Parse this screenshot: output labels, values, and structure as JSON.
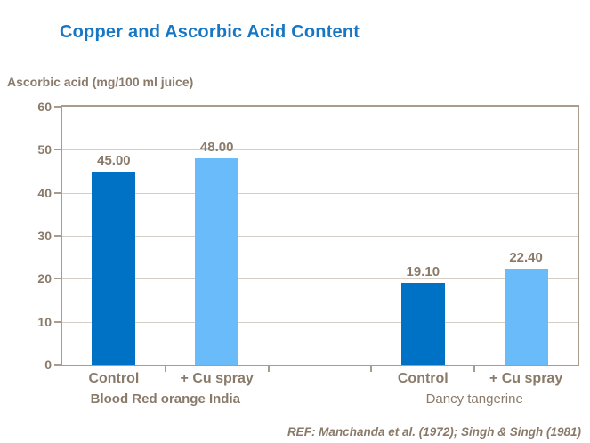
{
  "chart_data": {
    "type": "bar",
    "title": "Copper and Ascorbic Acid Content",
    "ylabel": "Ascorbic acid (mg/100 ml juice)",
    "ylim": [
      0,
      60
    ],
    "yticks": [
      0,
      10,
      20,
      30,
      40,
      50,
      60
    ],
    "grid": true,
    "legend_position": "none",
    "category_slots": 5,
    "bars": [
      {
        "category": "Control",
        "group": "Blood Red orange India",
        "value": 45.0,
        "display": "45.00",
        "series": "control",
        "slot": 0
      },
      {
        "category": "+ Cu spray",
        "group": "Blood Red orange India",
        "value": 48.0,
        "display": "48.00",
        "series": "cu_spray",
        "slot": 1
      },
      {
        "category": "Control",
        "group": "Dancy tangerine",
        "value": 19.1,
        "display": "19.10",
        "series": "control",
        "slot": 3
      },
      {
        "category": "+ Cu spray",
        "group": "Dancy tangerine",
        "value": 22.4,
        "display": "22.40",
        "series": "cu_spray",
        "slot": 4
      }
    ],
    "groups": [
      {
        "label": "Blood Red orange India",
        "bold": true,
        "slot_start": 0,
        "slot_end": 2
      },
      {
        "label": "Dancy tangerine",
        "bold": false,
        "slot_start": 3,
        "slot_end": 5
      }
    ],
    "reference": "REF: Manchanda et al. (1972); Singh & Singh (1981)",
    "colors": {
      "title": "#1777c5",
      "control_bar": "#0072c6",
      "cu_spray_bar": "#69bbfa",
      "axis_text": "#8a7a6a",
      "axis_line": "#a89c8e",
      "gridline": "#d4cec5"
    }
  }
}
